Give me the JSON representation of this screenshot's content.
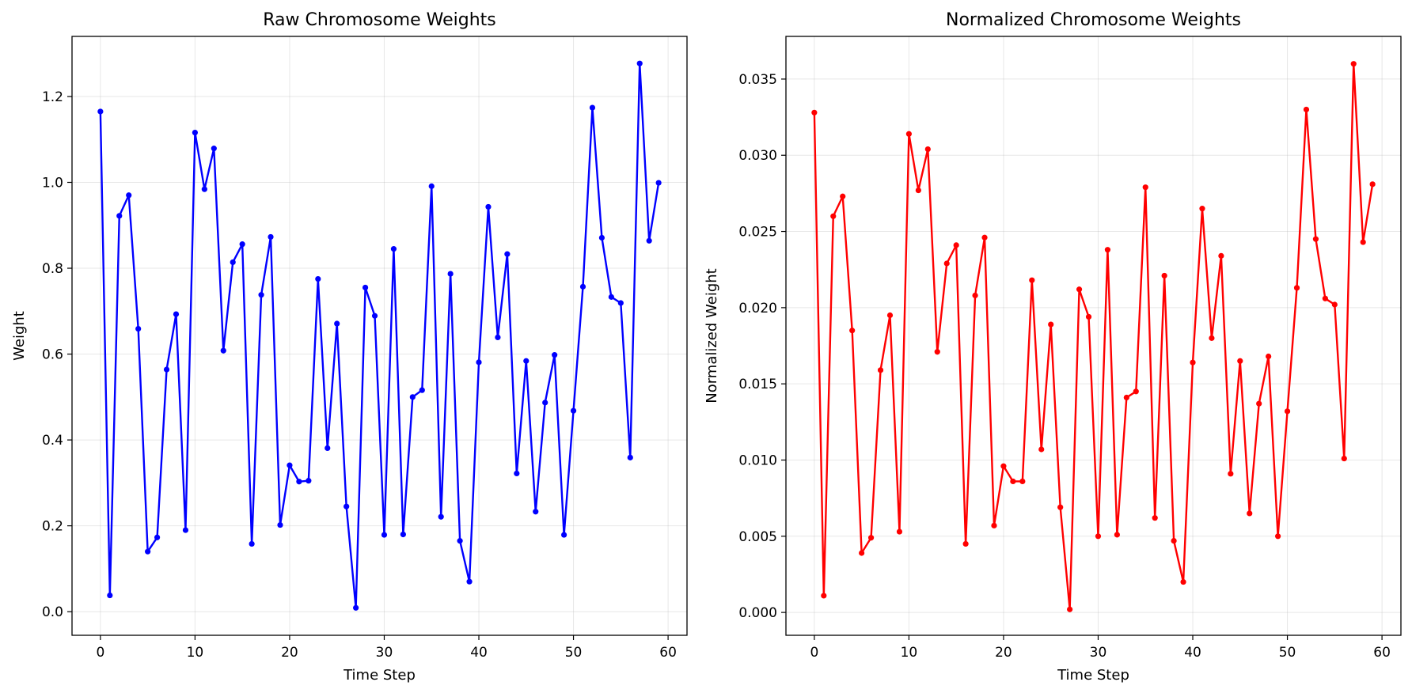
{
  "chart_data": [
    {
      "type": "line",
      "title": "Raw Chromosome Weights",
      "xlabel": "Time Step",
      "ylabel": "Weight",
      "xlim": [
        -3,
        62
      ],
      "ylim": [
        -0.055,
        1.34
      ],
      "xticks": [
        0,
        10,
        20,
        30,
        40,
        50,
        60
      ],
      "yticks": [
        0.0,
        0.2,
        0.4,
        0.6,
        0.8,
        1.0,
        1.2
      ],
      "ytick_decimals": 1,
      "grid": true,
      "color": "#0000ff",
      "series": [
        {
          "x": [
            0,
            1,
            2,
            3,
            4,
            5,
            6,
            7,
            8,
            9,
            10,
            11,
            12,
            13,
            14,
            15,
            16,
            17,
            18,
            19,
            20,
            21,
            22,
            23,
            24,
            25,
            26,
            27,
            28,
            29,
            30,
            31,
            32,
            33,
            34,
            35,
            36,
            37,
            38,
            39,
            40,
            41,
            42,
            43,
            44,
            45,
            46,
            47,
            48,
            49,
            50,
            51,
            52,
            53,
            54,
            55,
            56,
            57,
            58,
            59
          ],
          "values": [
            1.165,
            0.038,
            0.922,
            0.97,
            0.659,
            0.14,
            0.173,
            0.564,
            0.693,
            0.19,
            1.116,
            0.984,
            1.079,
            0.608,
            0.814,
            0.856,
            0.158,
            0.738,
            0.873,
            0.202,
            0.341,
            0.303,
            0.305,
            0.775,
            0.381,
            0.671,
            0.245,
            0.009,
            0.755,
            0.689,
            0.179,
            0.845,
            0.18,
            0.5,
            0.516,
            0.991,
            0.221,
            0.787,
            0.165,
            0.07,
            0.581,
            0.943,
            0.639,
            0.833,
            0.322,
            0.584,
            0.233,
            0.487,
            0.598,
            0.179,
            0.468,
            0.757,
            1.174,
            0.871,
            0.733,
            0.719,
            0.359,
            1.277,
            0.864,
            0.999
          ]
        }
      ]
    },
    {
      "type": "line",
      "title": "Normalized Chromosome Weights",
      "xlabel": "Time Step",
      "ylabel": "Normalized Weight",
      "xlim": [
        -3,
        62
      ],
      "ylim": [
        -0.0015,
        0.0378
      ],
      "xticks": [
        0,
        10,
        20,
        30,
        40,
        50,
        60
      ],
      "yticks": [
        0.0,
        0.005,
        0.01,
        0.015,
        0.02,
        0.025,
        0.03,
        0.035
      ],
      "ytick_decimals": 3,
      "grid": true,
      "color": "#ff0000",
      "series": [
        {
          "x": [
            0,
            1,
            2,
            3,
            4,
            5,
            6,
            7,
            8,
            9,
            10,
            11,
            12,
            13,
            14,
            15,
            16,
            17,
            18,
            19,
            20,
            21,
            22,
            23,
            24,
            25,
            26,
            27,
            28,
            29,
            30,
            31,
            32,
            33,
            34,
            35,
            36,
            37,
            38,
            39,
            40,
            41,
            42,
            43,
            44,
            45,
            46,
            47,
            48,
            49,
            50,
            51,
            52,
            53,
            54,
            55,
            56,
            57,
            58,
            59
          ],
          "values": [
            0.0328,
            0.0011,
            0.026,
            0.0273,
            0.0185,
            0.0039,
            0.0049,
            0.0159,
            0.0195,
            0.0053,
            0.0314,
            0.0277,
            0.0304,
            0.0171,
            0.0229,
            0.0241,
            0.0045,
            0.0208,
            0.0246,
            0.0057,
            0.0096,
            0.0086,
            0.0086,
            0.0218,
            0.0107,
            0.0189,
            0.0069,
            0.0002,
            0.0212,
            0.0194,
            0.005,
            0.0238,
            0.0051,
            0.0141,
            0.0145,
            0.0279,
            0.0062,
            0.0221,
            0.0047,
            0.002,
            0.0164,
            0.0265,
            0.018,
            0.0234,
            0.0091,
            0.0165,
            0.0065,
            0.0137,
            0.0168,
            0.005,
            0.0132,
            0.0213,
            0.033,
            0.0245,
            0.0206,
            0.0202,
            0.0101,
            0.036,
            0.0243,
            0.0281
          ]
        }
      ]
    }
  ]
}
